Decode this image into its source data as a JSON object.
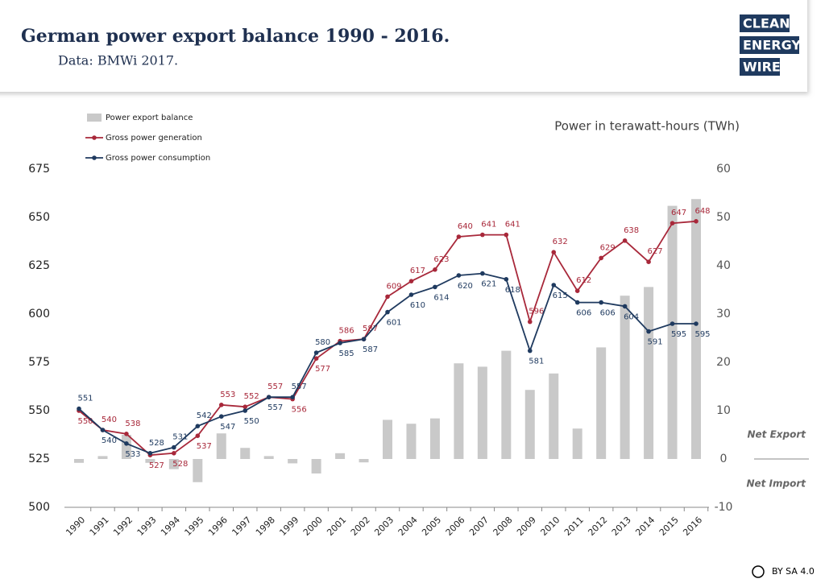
{
  "chart_data": {
    "type": "combo",
    "title": "German power export balance 1990 - 2016.",
    "subtitle": "Data: BMWi 2017.",
    "y2_label": "Power in terawatt-hours (TWh)",
    "annotations": [
      "Net Export",
      "Net Import"
    ],
    "logo": [
      "CLEAN",
      "ENERGY",
      "WIRE"
    ],
    "license": "BY SA 4.0",
    "categories": [
      "1990",
      "1991",
      "1992",
      "1993",
      "1994",
      "1995",
      "1996",
      "1997",
      "1998",
      "1999",
      "2000",
      "2001",
      "2002",
      "2003",
      "2004",
      "2005",
      "2006",
      "2007",
      "2008",
      "2009",
      "2010",
      "2011",
      "2012",
      "2013",
      "2014",
      "2015",
      "2016"
    ],
    "series": [
      {
        "name": "Power export balance",
        "type": "bar",
        "axis": "y2",
        "color": "#c9c9c9",
        "values": [
          -0.8,
          0.6,
          5,
          -0.8,
          -2.1,
          -4.8,
          5.3,
          2.3,
          0.6,
          -0.9,
          -3,
          1.2,
          -0.7,
          8.1,
          7.3,
          8.4,
          19.8,
          19.1,
          22.4,
          14.3,
          17.7,
          6.3,
          23.1,
          33.8,
          35.6,
          52.4,
          53.8
        ]
      },
      {
        "name": "Gross power generation",
        "type": "line",
        "color": "#a8283a",
        "values": [
          550,
          540,
          538,
          527,
          528,
          537,
          553,
          552,
          557,
          556,
          577,
          586,
          587,
          609,
          617,
          623,
          640,
          641,
          641,
          596,
          632,
          612,
          629,
          638,
          627,
          647,
          648
        ]
      },
      {
        "name": "Gross power consumption",
        "type": "line",
        "color": "#1f3a5f",
        "values": [
          551,
          540,
          533,
          528,
          531,
          542,
          547,
          550,
          557,
          557,
          580,
          585,
          587,
          601,
          610,
          614,
          620,
          621,
          618,
          581,
          615,
          606,
          606,
          604,
          591,
          595,
          595
        ]
      }
    ],
    "ylim": [
      500,
      675
    ],
    "yticks": [
      500,
      525,
      550,
      575,
      600,
      625,
      650,
      675
    ],
    "y2lim": [
      -10,
      60
    ],
    "y2ticks": [
      -10,
      0,
      10,
      20,
      30,
      40,
      50,
      60
    ],
    "grid": false
  }
}
